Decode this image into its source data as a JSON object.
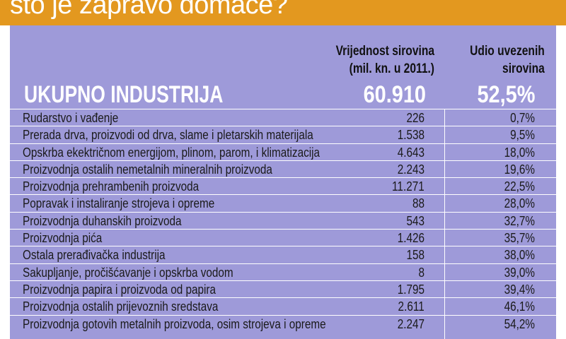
{
  "header": {
    "title": "što je zapravo domaće?"
  },
  "chart_data": {
    "type": "table",
    "columns": [
      "Vrijednost sirovina (mil. kn. u 2011.)",
      "Udio uvezenih sirovina"
    ],
    "column_lines": {
      "value": [
        "Vrijednost sirovina",
        "(mil. kn. u 2011.)"
      ],
      "share": [
        "Udio uvezenih",
        "sirovina"
      ]
    },
    "total": {
      "label": "UKUPNO INDUSTRIJA",
      "value": "60.910",
      "share": "52,5%"
    },
    "rows": [
      {
        "label": "Rudarstvo i vađenje",
        "value": "226",
        "share": "0,7%"
      },
      {
        "label": "Prerada drva, proizvodi od drva, slame i pletarskih materijala",
        "value": "1.538",
        "share": "9,5%"
      },
      {
        "label": "Opskrba ekektričnom energijom, plinom, parom, i klimatizacija",
        "value": "4.643",
        "share": "18,0%"
      },
      {
        "label": "Proizvodnja ostalih nemetalnih mineralnih proizvoda",
        "value": "2.243",
        "share": "19,6%"
      },
      {
        "label": "Proizvodnja prehrambenih proizvoda",
        "value": "11.271",
        "share": "22,5%"
      },
      {
        "label": "Popravak i instaliranje strojeva i opreme",
        "value": "88",
        "share": "28,0%"
      },
      {
        "label": "Proizvodnja duhanskih proizvoda",
        "value": "543",
        "share": "32,7%"
      },
      {
        "label": "Proizvodnja pića",
        "value": "1.426",
        "share": "35,7%"
      },
      {
        "label": "Ostala prerađivačka industrija",
        "value": "158",
        "share": "38,0%"
      },
      {
        "label": "Sakupljanje, pročišćavanje i opskrba vodom",
        "value": "8",
        "share": "39,0%"
      },
      {
        "label": "Proizvodnja papira i proizvoda od papira",
        "value": "1.795",
        "share": "39,4%"
      },
      {
        "label": "Proizvodnja ostalih prijevoznih sredstava",
        "value": "2.611",
        "share": "46,1%"
      },
      {
        "label": "Proizvodnja gotovih metalnih proizvoda, osim strojeva i opreme",
        "value": "2.247",
        "share": "54,2%"
      }
    ]
  }
}
